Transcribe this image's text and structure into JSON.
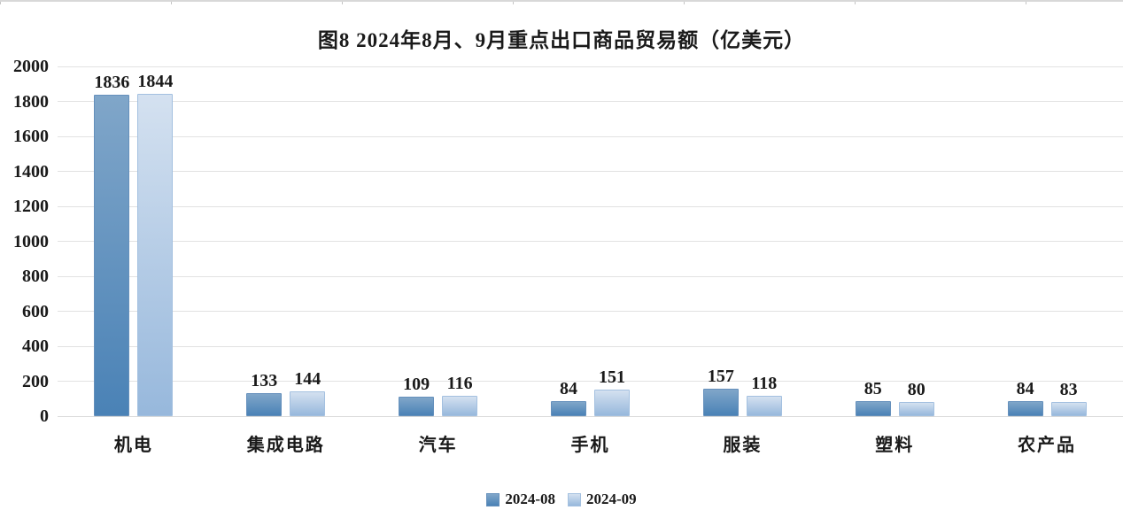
{
  "chart_data": {
    "type": "bar",
    "title": "图8 2024年8月、9月重点出口商品贸易额（亿美元）",
    "categories": [
      "机电",
      "集成电路",
      "汽车",
      "手机",
      "服装",
      "塑料",
      "农产品"
    ],
    "series": [
      {
        "name": "2024-08",
        "values": [
          1836,
          133,
          109,
          84,
          157,
          85,
          84
        ],
        "color_top": "#80A6C9",
        "color_bottom": "#4A82B6",
        "border_color": "#6590BC"
      },
      {
        "name": "2024-09",
        "values": [
          1844,
          144,
          116,
          151,
          118,
          80,
          83
        ],
        "color_top": "#D4E1F0",
        "color_bottom": "#97B8DC",
        "border_color": "#A3C0E0"
      }
    ],
    "xlabel": "",
    "ylabel": "",
    "ylim": [
      0,
      2000
    ],
    "ytick_step": 200,
    "yticks": [
      0,
      200,
      400,
      600,
      800,
      1000,
      1200,
      1400,
      1600,
      1800,
      2000
    ],
    "grid": true,
    "legend_position": "bottom",
    "gridline_color": "#e2e2e2",
    "axis_line_color": "#d9d9d9",
    "text_color": "#1a1a1a"
  }
}
